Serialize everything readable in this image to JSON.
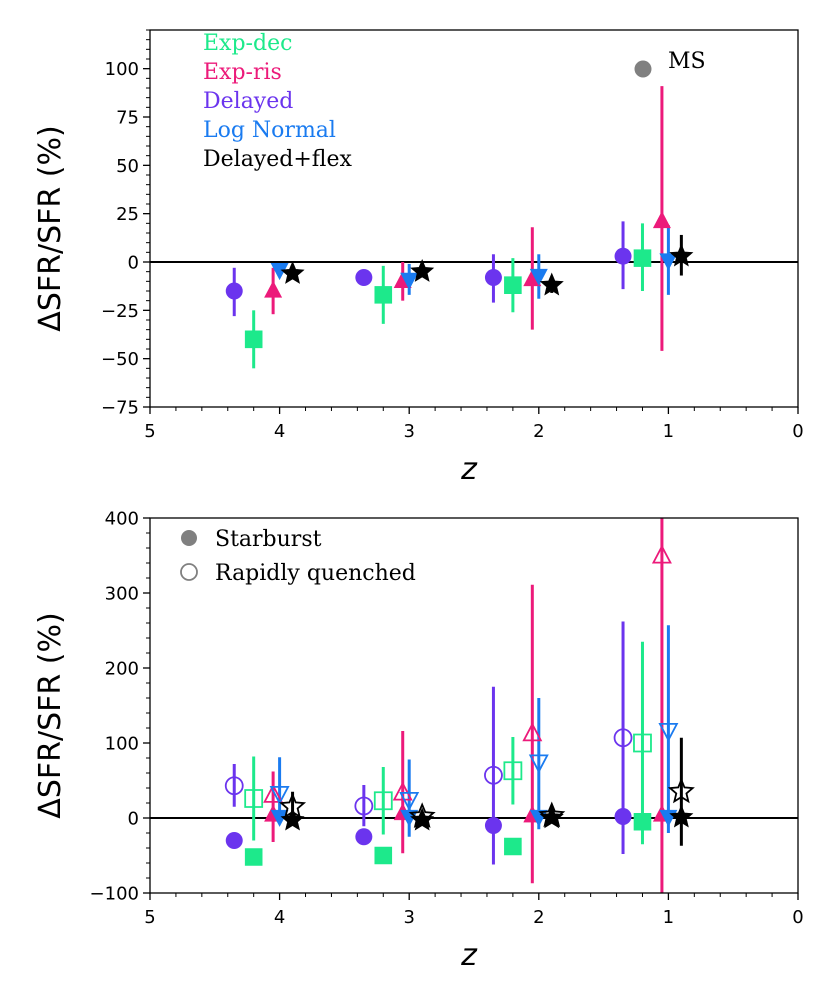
{
  "chart_data": [
    {
      "type": "scatter",
      "panel": "top",
      "xlabel": "z",
      "ylabel": "ΔSFR/SFR (%)",
      "xlim": [
        5,
        0
      ],
      "ylim": [
        -75,
        120
      ],
      "xticks": [
        5,
        4,
        3,
        2,
        1,
        0
      ],
      "yticks": [
        -75,
        -50,
        -25,
        0,
        25,
        50,
        75,
        100
      ],
      "zero_line": true,
      "legend_position": "top-left",
      "legend": [
        {
          "label": "Exp-dec",
          "color": "#1de98b"
        },
        {
          "label": "Exp-ris",
          "color": "#ec1a7a"
        },
        {
          "label": "Delayed",
          "color": "#6b34ee"
        },
        {
          "label": "Log Normal",
          "color": "#1a7bf0"
        },
        {
          "label": "Delayed+flex",
          "color": "#000000"
        }
      ],
      "marker_key": [
        {
          "label": "MS",
          "marker": "circle",
          "fill": true
        }
      ],
      "series": [
        {
          "name": "Delayed",
          "marker": "circle",
          "color": "#6b34ee",
          "fill": true,
          "points": [
            {
              "x": 4.35,
              "y": -15,
              "lo": -28,
              "hi": -3
            },
            {
              "x": 3.35,
              "y": -8,
              "lo": -12,
              "hi": -5
            },
            {
              "x": 2.35,
              "y": -8,
              "lo": -21,
              "hi": 4
            },
            {
              "x": 1.35,
              "y": 3,
              "lo": -14,
              "hi": 21
            }
          ]
        },
        {
          "name": "Exp-dec",
          "marker": "square",
          "color": "#1de98b",
          "fill": true,
          "points": [
            {
              "x": 4.2,
              "y": -40,
              "lo": -55,
              "hi": -25
            },
            {
              "x": 3.2,
              "y": -17,
              "lo": -32,
              "hi": -2
            },
            {
              "x": 2.2,
              "y": -12,
              "lo": -26,
              "hi": 2
            },
            {
              "x": 1.2,
              "y": 2,
              "lo": -15,
              "hi": 20
            }
          ]
        },
        {
          "name": "Exp-ris",
          "marker": "triangle-up",
          "color": "#ec1a7a",
          "fill": true,
          "points": [
            {
              "x": 4.05,
              "y": -15,
              "lo": -27,
              "hi": -3
            },
            {
              "x": 3.05,
              "y": -10,
              "lo": -20,
              "hi": 0
            },
            {
              "x": 2.05,
              "y": -9,
              "lo": -35,
              "hi": 18
            },
            {
              "x": 1.05,
              "y": 21,
              "lo": -46,
              "hi": 91
            }
          ]
        },
        {
          "name": "Log Normal",
          "marker": "triangle-down",
          "color": "#1a7bf0",
          "fill": true,
          "points": [
            {
              "x": 4.0,
              "y": -4,
              "lo": -6,
              "hi": -2
            },
            {
              "x": 3.0,
              "y": -9,
              "lo": -17,
              "hi": -1
            },
            {
              "x": 2.0,
              "y": -7,
              "lo": -19,
              "hi": 4
            },
            {
              "x": 1.0,
              "y": 1,
              "lo": -17,
              "hi": 19
            }
          ]
        },
        {
          "name": "Delayed+flex",
          "marker": "star",
          "color": "#000000",
          "fill": true,
          "points": [
            {
              "x": 3.9,
              "y": -6,
              "lo": -9,
              "hi": -3
            },
            {
              "x": 2.9,
              "y": -5,
              "lo": -7,
              "hi": -3
            },
            {
              "x": 1.9,
              "y": -12,
              "lo": -16,
              "hi": -8
            },
            {
              "x": 0.9,
              "y": 3,
              "lo": -7,
              "hi": 14
            }
          ]
        }
      ]
    },
    {
      "type": "scatter",
      "panel": "bottom",
      "xlabel": "z",
      "ylabel": "ΔSFR/SFR (%)",
      "xlim": [
        5,
        0
      ],
      "ylim": [
        -100,
        400
      ],
      "xticks": [
        5,
        4,
        3,
        2,
        1,
        0
      ],
      "yticks": [
        -100,
        0,
        100,
        200,
        300,
        400
      ],
      "zero_line": true,
      "legend_position": "top-left",
      "marker_key": [
        {
          "label": "Starburst",
          "marker": "circle",
          "fill": true
        },
        {
          "label": "Rapidly quenched",
          "marker": "circle",
          "fill": false
        }
      ],
      "series": [
        {
          "name": "Delayed",
          "marker": "circle",
          "color": "#6b34ee",
          "fill": true,
          "points": [
            {
              "x": 4.35,
              "y": -30
            },
            {
              "x": 3.35,
              "y": -25
            },
            {
              "x": 2.35,
              "y": -10
            },
            {
              "x": 1.35,
              "y": 2
            }
          ]
        },
        {
          "name": "Exp-dec",
          "marker": "square",
          "color": "#1de98b",
          "fill": true,
          "points": [
            {
              "x": 4.2,
              "y": -52
            },
            {
              "x": 3.2,
              "y": -50
            },
            {
              "x": 2.2,
              "y": -38
            },
            {
              "x": 1.2,
              "y": -5
            }
          ]
        },
        {
          "name": "Exp-ris",
          "marker": "triangle-up",
          "color": "#ec1a7a",
          "fill": true,
          "points": [
            {
              "x": 4.05,
              "y": 4
            },
            {
              "x": 3.05,
              "y": 6
            },
            {
              "x": 2.05,
              "y": 3
            },
            {
              "x": 1.05,
              "y": 4
            }
          ]
        },
        {
          "name": "Log Normal",
          "marker": "triangle-down",
          "color": "#1a7bf0",
          "fill": true,
          "points": [
            {
              "x": 4.0,
              "y": 2
            },
            {
              "x": 3.0,
              "y": 2
            },
            {
              "x": 2.0,
              "y": 2
            },
            {
              "x": 1.0,
              "y": 2
            }
          ]
        },
        {
          "name": "Delayed+flex",
          "marker": "star",
          "color": "#000000",
          "fill": true,
          "points": [
            {
              "x": 3.9,
              "y": -3
            },
            {
              "x": 2.9,
              "y": -3
            },
            {
              "x": 1.9,
              "y": 0
            },
            {
              "x": 0.9,
              "y": 1
            }
          ]
        },
        {
          "name": "Delayed",
          "marker": "circle",
          "color": "#6b34ee",
          "fill": false,
          "points": [
            {
              "x": 4.35,
              "y": 43,
              "lo": 15,
              "hi": 72
            },
            {
              "x": 3.35,
              "y": 16,
              "lo": -11,
              "hi": 44
            },
            {
              "x": 2.35,
              "y": 57,
              "lo": -62,
              "hi": 175
            },
            {
              "x": 1.35,
              "y": 107,
              "lo": -48,
              "hi": 262
            }
          ]
        },
        {
          "name": "Exp-dec",
          "marker": "square",
          "color": "#1de98b",
          "fill": false,
          "points": [
            {
              "x": 4.2,
              "y": 26,
              "lo": -30,
              "hi": 82
            },
            {
              "x": 3.2,
              "y": 23,
              "lo": -22,
              "hi": 68
            },
            {
              "x": 2.2,
              "y": 63,
              "lo": 18,
              "hi": 108
            },
            {
              "x": 1.2,
              "y": 100,
              "lo": -35,
              "hi": 235
            }
          ]
        },
        {
          "name": "Exp-ris",
          "marker": "triangle-up",
          "color": "#ec1a7a",
          "fill": false,
          "points": [
            {
              "x": 4.05,
              "y": 30,
              "lo": -32,
              "hi": 62
            },
            {
              "x": 3.05,
              "y": 33,
              "lo": -47,
              "hi": 116
            },
            {
              "x": 2.05,
              "y": 112,
              "lo": -87,
              "hi": 311
            },
            {
              "x": 1.05,
              "y": 349,
              "lo": -100,
              "hi": 400
            }
          ]
        },
        {
          "name": "Log Normal",
          "marker": "triangle-down",
          "color": "#1a7bf0",
          "fill": false,
          "points": [
            {
              "x": 4.0,
              "y": 33,
              "lo": -2,
              "hi": 81
            },
            {
              "x": 3.0,
              "y": 25,
              "lo": -25,
              "hi": 78
            },
            {
              "x": 2.0,
              "y": 75,
              "lo": -15,
              "hi": 160
            },
            {
              "x": 1.0,
              "y": 117,
              "lo": -20,
              "hi": 257
            }
          ]
        },
        {
          "name": "Delayed+flex",
          "marker": "star",
          "color": "#000000",
          "fill": false,
          "points": [
            {
              "x": 3.9,
              "y": 15,
              "lo": -5,
              "hi": 35
            },
            {
              "x": 2.9,
              "y": 2,
              "lo": -1,
              "hi": 5
            },
            {
              "x": 1.9,
              "y": 3,
              "lo": 0,
              "hi": 6
            },
            {
              "x": 0.9,
              "y": 35,
              "lo": -37,
              "hi": 107
            }
          ]
        }
      ]
    }
  ]
}
